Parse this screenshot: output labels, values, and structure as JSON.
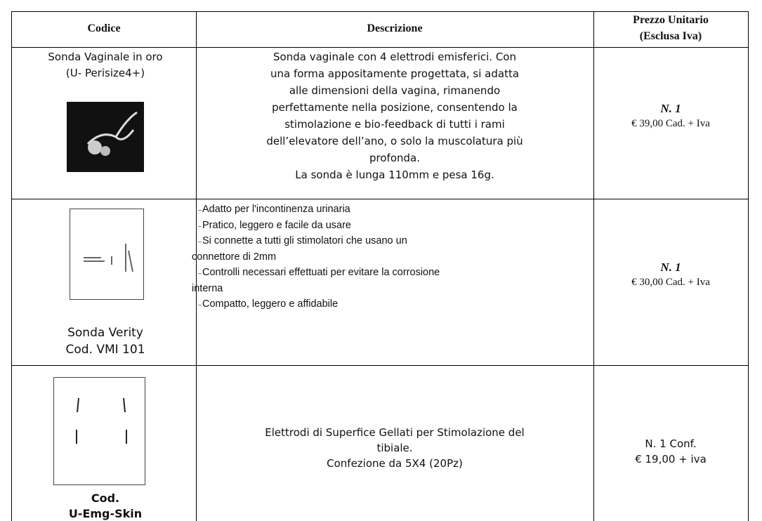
{
  "table": {
    "headers": [
      "Codice",
      "Descrizione",
      [
        "Prezzo Unitario",
        "(Esclusa Iva)"
      ]
    ],
    "rows": [
      {
        "code": [
          "Sonda Vaginale in oro",
          "(U- Perisize4+)"
        ],
        "description": [
          "Sonda vaginale con 4 elettrodi emisferici. Con",
          "una forma appositamente progettata, si adatta",
          "alle dimensioni della vagina, rimanendo",
          "perfettamente nella posizione, consentendo la",
          "stimolazione e bio-feedback di tutti i rami",
          "dell’elevatore dell’ano, o solo la muscolatura più",
          "profonda.",
          "La sonda è lunga 110mm e pesa 16g."
        ],
        "price": [
          "N. 1",
          "€ 39,00 Cad. + Iva"
        ]
      },
      {
        "code": [
          "Sonda Verity",
          "Cod. VMI 101"
        ],
        "bullets": [
          [
            "Adatto per l'incontinenza urinaria"
          ],
          [
            "Pratico, leggero e facile da usare"
          ],
          [
            "Si connette a tutti gli stimolatori che usano un",
            "connettore di 2mm"
          ],
          [
            "Controlli necessari effettuati per evitare la corrosione",
            "interna"
          ],
          [
            "Compatto, leggero e affidabile"
          ]
        ],
        "price": [
          "N. 1",
          "€ 30,00 Cad. + Iva"
        ]
      },
      {
        "code": [
          "Cod.",
          "U-Emg-Skin"
        ],
        "description": [
          "Elettrodi di Superfice Gellati per Stimolazione del",
          "tibiale.",
          "Confezione da 5X4 (20Pz)"
        ],
        "price": [
          "N. 1 Conf.",
          "€ 19,00 + iva"
        ]
      }
    ]
  }
}
